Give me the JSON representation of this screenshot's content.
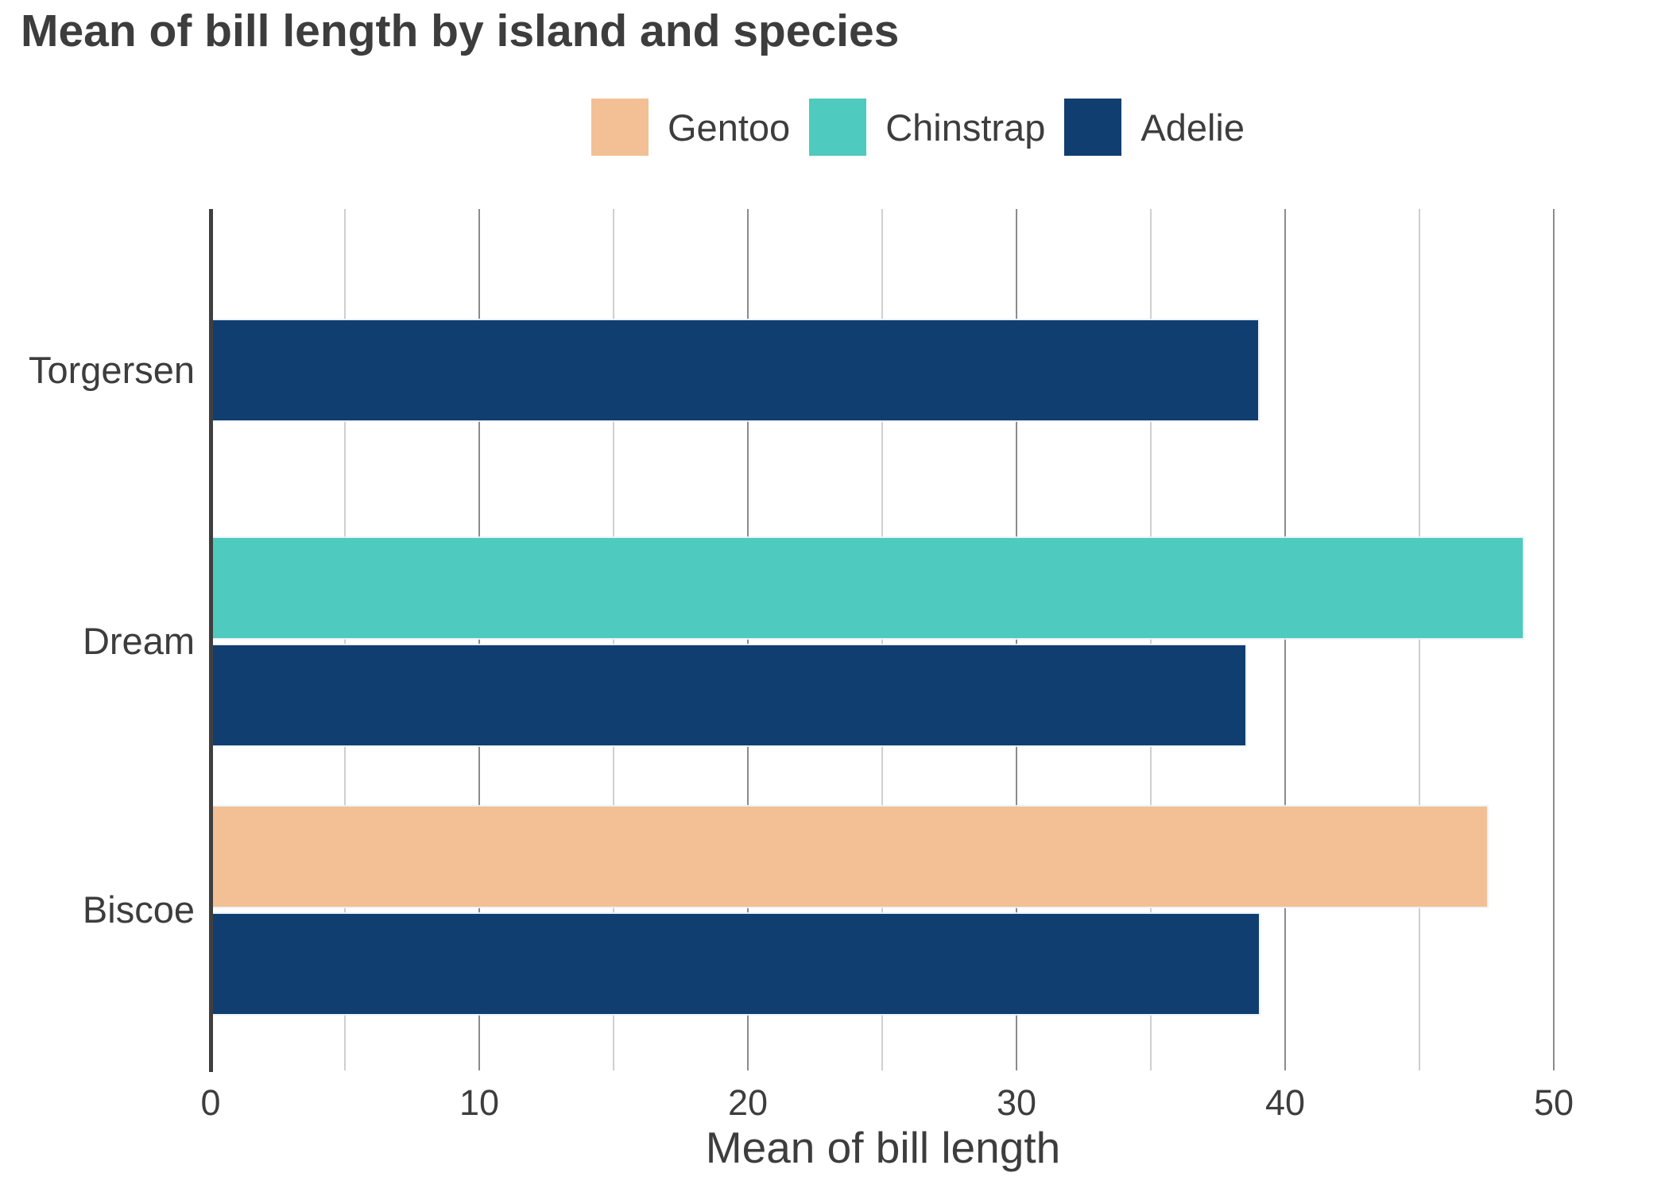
{
  "chart_data": {
    "type": "bar",
    "orientation": "horizontal",
    "title": "Mean of bill length by island and species",
    "xlabel": "Mean of bill length",
    "xlim": [
      0,
      54.2
    ],
    "x_major_ticks": [
      0,
      10,
      20,
      30,
      40,
      50
    ],
    "x_minor_gridlines": [
      5,
      15,
      25,
      35,
      45
    ],
    "grid": "vertical, minor lines lighter than major",
    "legend_position": "top-center",
    "legend_order": [
      "Gentoo",
      "Chinstrap",
      "Adelie"
    ],
    "categories": [
      "Torgersen",
      "Dream",
      "Biscoe"
    ],
    "series": [
      {
        "name": "Gentoo",
        "color": "#f2c094",
        "values": [
          null,
          null,
          47.5
        ]
      },
      {
        "name": "Chinstrap",
        "color": "#4ecabe",
        "values": [
          null,
          48.83,
          null
        ]
      },
      {
        "name": "Adelie",
        "color": "#103e71",
        "values": [
          38.95,
          38.5,
          38.98
        ]
      }
    ]
  },
  "colors": {
    "background": "#ffffff",
    "text": "#3d3d3d",
    "axis_line": "#3f3f3f",
    "gridline_major": "#8b8b8b",
    "gridline_minor": "#cfcfcf"
  }
}
